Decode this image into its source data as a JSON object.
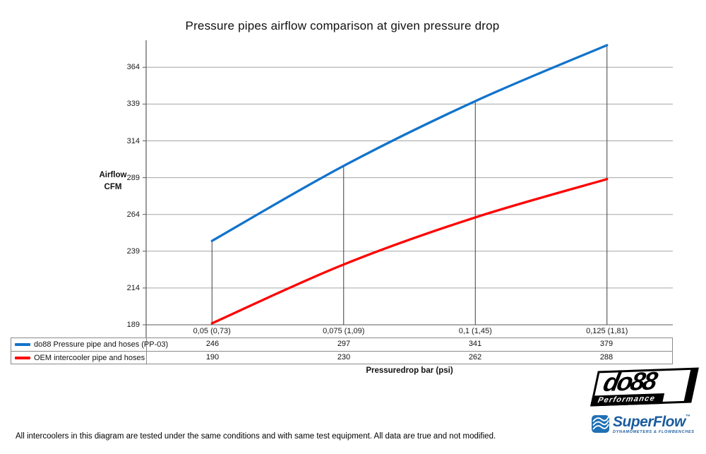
{
  "chart_data": {
    "type": "line",
    "title": "Pressure pipes airflow comparison at given pressure drop",
    "ylabel_line1": "Airflow",
    "ylabel_line2": "CFM",
    "xlabel": "Pressuredrop bar (psi)",
    "yticks": [
      364,
      339,
      314,
      289,
      264,
      239,
      214,
      189
    ],
    "ylim": [
      189,
      380
    ],
    "categories": [
      "0,05 (0,73)",
      "0,075 (1,09)",
      "0,1 (1,45)",
      "0,125 (1,81)"
    ],
    "series": [
      {
        "name": "do88 Pressure pipe and hoses (PP-03)",
        "color": "#1273cc",
        "values": [
          246,
          297,
          341,
          379
        ]
      },
      {
        "name": "OEM intercooler pipe and hoses",
        "color": "#ff0000",
        "values": [
          190,
          230,
          262,
          288
        ]
      }
    ],
    "grid": "horizontal",
    "legend_position": "table-left"
  },
  "footer": {
    "note": "All intercoolers in this diagram are tested under the same conditions and with same test equipment. All data are true and not modified."
  },
  "logos": {
    "do88": {
      "brand": "do88",
      "tagline": "Performance"
    },
    "superflow": {
      "brand": "SuperFlow",
      "trademark": "™",
      "tagline": "DYNAMOMETERS & FLOWBENCHES"
    }
  },
  "colors": {
    "grid": "#a6a6a6",
    "axis": "#595959",
    "dropline": "#3f3f3f",
    "do88_blue": "#1273cc",
    "oem_red": "#ff0000",
    "superflow_blue": "#1a5c9e"
  }
}
